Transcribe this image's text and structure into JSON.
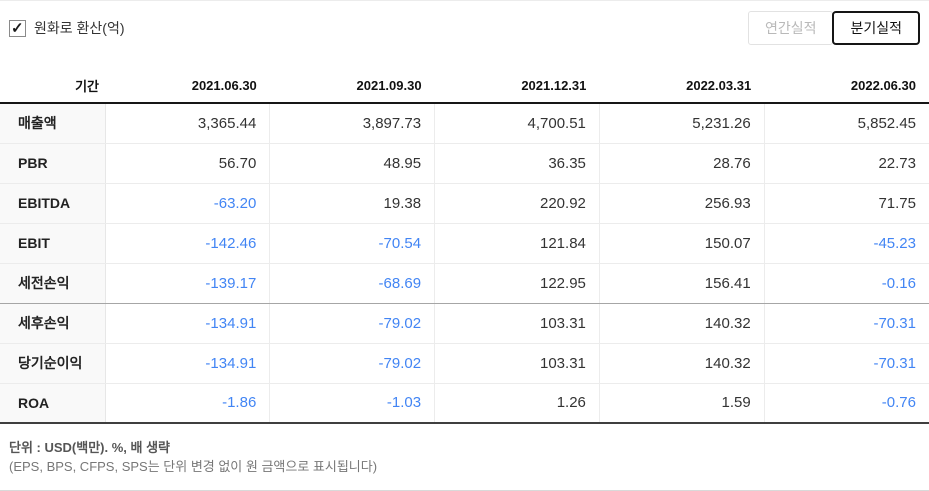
{
  "accent": {
    "negative_value_color": "#4285f4",
    "selected_button_border": "#151515"
  },
  "header": {
    "checkbox": {
      "checked": true,
      "label": "원화로 환산(억)"
    },
    "toggle_buttons": [
      {
        "label": "연간실적",
        "selected": false
      },
      {
        "label": "분기실적",
        "selected": true
      }
    ]
  },
  "table": {
    "period_header": "기간",
    "columns": [
      "2021.06.30",
      "2021.09.30",
      "2021.12.31",
      "2022.03.31",
      "2022.06.30"
    ],
    "rows": [
      {
        "label": "매출액",
        "values": [
          "3,365.44",
          "3,897.73",
          "4,700.51",
          "5,231.26",
          "5,852.45"
        ],
        "group_end": false
      },
      {
        "label": "PBR",
        "values": [
          "56.70",
          "48.95",
          "36.35",
          "28.76",
          "22.73"
        ],
        "group_end": false
      },
      {
        "label": "EBITDA",
        "values": [
          "-63.20",
          "19.38",
          "220.92",
          "256.93",
          "71.75"
        ],
        "group_end": false
      },
      {
        "label": "EBIT",
        "values": [
          "-142.46",
          "-70.54",
          "121.84",
          "150.07",
          "-45.23"
        ],
        "group_end": false
      },
      {
        "label": "세전손익",
        "values": [
          "-139.17",
          "-68.69",
          "122.95",
          "156.41",
          "-0.16"
        ],
        "group_end": true
      },
      {
        "label": "세후손익",
        "values": [
          "-134.91",
          "-79.02",
          "103.31",
          "140.32",
          "-70.31"
        ],
        "group_end": false
      },
      {
        "label": "당기순이익",
        "values": [
          "-134.91",
          "-79.02",
          "103.31",
          "140.32",
          "-70.31"
        ],
        "group_end": false
      },
      {
        "label": "ROA",
        "values": [
          "-1.86",
          "-1.03",
          "1.26",
          "1.59",
          "-0.76"
        ],
        "group_end": false
      }
    ]
  },
  "footer": {
    "line1": "단위 : USD(백만). %, 배 생략",
    "line2": "(EPS, BPS, CFPS, SPS는 단위 변경 없이 원 금액으로 표시됩니다)"
  }
}
